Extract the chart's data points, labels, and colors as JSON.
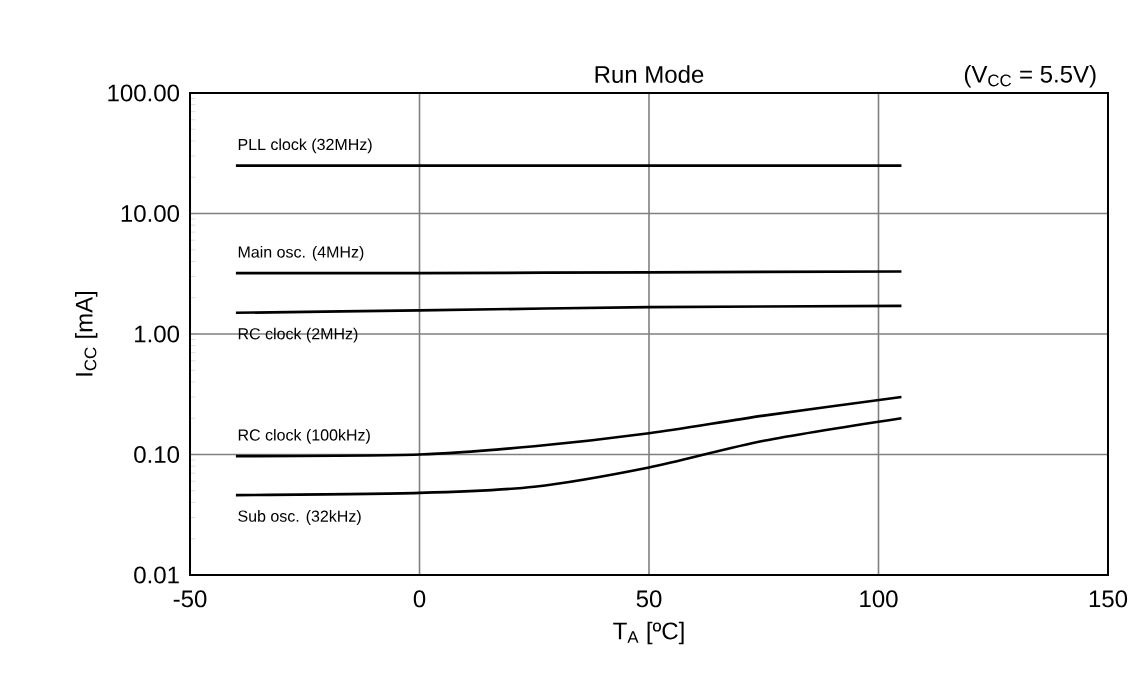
{
  "chart_data": {
    "type": "line",
    "title": "Run Mode",
    "xlabel": "T$_{A}$ [ºC]",
    "ylabel": "I$_{CC}$ [mA]",
    "annotations": [
      "(V$_{CC}$ = 5.5V)"
    ],
    "log": "y",
    "grid": true,
    "marker": "none",
    "line_style": "solid",
    "xlim": [
      -50,
      150
    ],
    "xticks": [
      -50,
      0,
      50,
      100,
      150
    ],
    "ylim": [
      0.01,
      100
    ],
    "yticks": [
      {
        "value": 0.01,
        "label": "0.01"
      },
      {
        "value": 0.1,
        "label": "0.10"
      },
      {
        "value": 1,
        "label": "1.00"
      },
      {
        "value": 10,
        "label": "10.00"
      },
      {
        "value": 100,
        "label": "100.00"
      }
    ],
    "series": [
      {
        "name": "PLL clock (32MHz)",
        "color": "#000000",
        "x": [
          -40,
          0,
          50,
          105
        ],
        "values": [
          25,
          25,
          25,
          25
        ]
      },
      {
        "name": "Main osc. (4MHz)",
        "color": "#000000",
        "x": [
          -40,
          0,
          50,
          105
        ],
        "values": [
          3.2,
          3.2,
          3.25,
          3.3
        ]
      },
      {
        "name": "RC clock (2MHz)",
        "color": "#000000",
        "x": [
          -40,
          0,
          50,
          105
        ],
        "values": [
          1.5,
          1.57,
          1.67,
          1.71
        ]
      },
      {
        "name": "RC clock (100kHz)",
        "color": "#000000",
        "x": [
          -40,
          0,
          25,
          50,
          75,
          105
        ],
        "values": [
          0.097,
          0.1,
          0.117,
          0.15,
          0.21,
          0.3
        ]
      },
      {
        "name": "Sub osc. (32kHz)",
        "color": "#000000",
        "x": [
          -40,
          0,
          25,
          50,
          75,
          105
        ],
        "values": [
          0.046,
          0.048,
          0.054,
          0.078,
          0.13,
          0.2
        ]
      }
    ]
  }
}
